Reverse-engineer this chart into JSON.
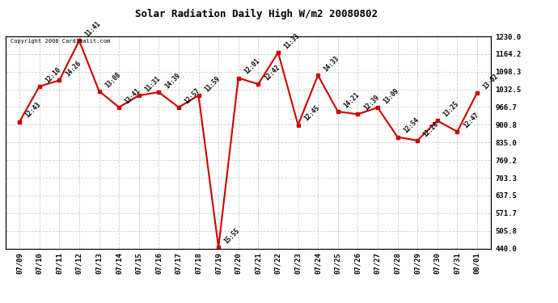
{
  "title": "Solar Radiation Daily High W/m2 20080802",
  "copyright": "Copyright 2008 Cardinalit.com",
  "x_labels": [
    "07/09",
    "07/10",
    "07/11",
    "07/12",
    "07/13",
    "07/14",
    "07/15",
    "07/16",
    "07/17",
    "07/18",
    "07/19",
    "07/20",
    "07/21",
    "07/22",
    "07/23",
    "07/24",
    "07/25",
    "07/26",
    "07/27",
    "07/28",
    "07/29",
    "07/30",
    "07/31",
    "08/01"
  ],
  "y_values": [
    912,
    1044,
    1066,
    1214,
    1026,
    966,
    1010,
    1022,
    966,
    1010,
    444,
    1075,
    1052,
    1170,
    900,
    1085,
    950,
    940,
    965,
    855,
    842,
    916,
    875,
    1020
  ],
  "point_labels": [
    "12:43",
    "12:10",
    "14:26",
    "11:41",
    "13:08",
    "13:41",
    "11:31",
    "14:39",
    "12:57",
    "11:59",
    "15:55",
    "12:01",
    "12:42",
    "11:33",
    "12:45",
    "14:33",
    "14:21",
    "12:39",
    "13:09",
    "12:54",
    "12:20",
    "13:25",
    "12:47",
    "13:02"
  ],
  "y_min": 440.0,
  "y_max": 1230.0,
  "y_ticks": [
    440.0,
    505.8,
    571.7,
    637.5,
    703.3,
    769.2,
    835.0,
    900.8,
    966.7,
    1032.5,
    1098.3,
    1164.2,
    1230.0
  ],
  "y_tick_labels": [
    "440.0",
    "505.8",
    "571.7",
    "637.5",
    "703.3",
    "769.2",
    "835.0",
    "900.8",
    "966.7",
    "1032.5",
    "1098.3",
    "1164.2",
    "1230.0"
  ],
  "line_color": "#cc0000",
  "marker_color": "#cc0000",
  "bg_color": "#ffffff",
  "grid_color": "#cccccc"
}
